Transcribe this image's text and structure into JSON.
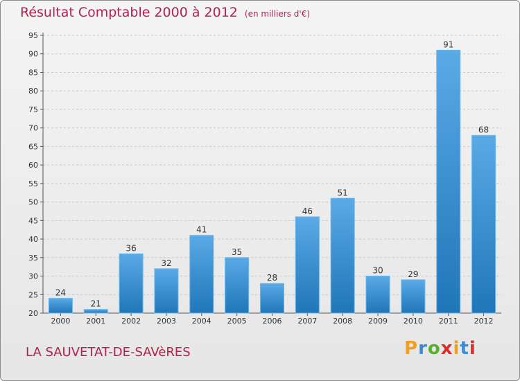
{
  "title": "Résultat Comptable 2000 à 2012",
  "subtitle": "(en milliers d'€)",
  "city": "LA SAUVETAT-DE-SAVèRES",
  "logo": {
    "letters": [
      "P",
      "r",
      "o",
      "x",
      "i",
      "t",
      "i"
    ],
    "colors": [
      "#f0a020",
      "#3a8ad8",
      "#58b030",
      "#d83030",
      "#f0a020",
      "#3a8ad8",
      "#d83030"
    ]
  },
  "colors": {
    "title": "#b3214a",
    "bar_light": "#5aaae6",
    "bar_dark": "#1f76b8",
    "grid": "#c8c8c8"
  },
  "chart_data": {
    "type": "bar",
    "title": "Résultat Comptable 2000 à 2012",
    "subtitle": "(en milliers d'€)",
    "categories": [
      "2000",
      "2001",
      "2002",
      "2003",
      "2004",
      "2005",
      "2006",
      "2007",
      "2008",
      "2009",
      "2010",
      "2011",
      "2012"
    ],
    "values": [
      24,
      21,
      36,
      32,
      41,
      35,
      28,
      46,
      51,
      30,
      29,
      91,
      68
    ],
    "ylim": [
      20,
      95
    ],
    "yticks": [
      20,
      25,
      30,
      35,
      40,
      45,
      50,
      55,
      60,
      65,
      70,
      75,
      80,
      85,
      90,
      95
    ],
    "grid": true,
    "data_labels": true
  }
}
